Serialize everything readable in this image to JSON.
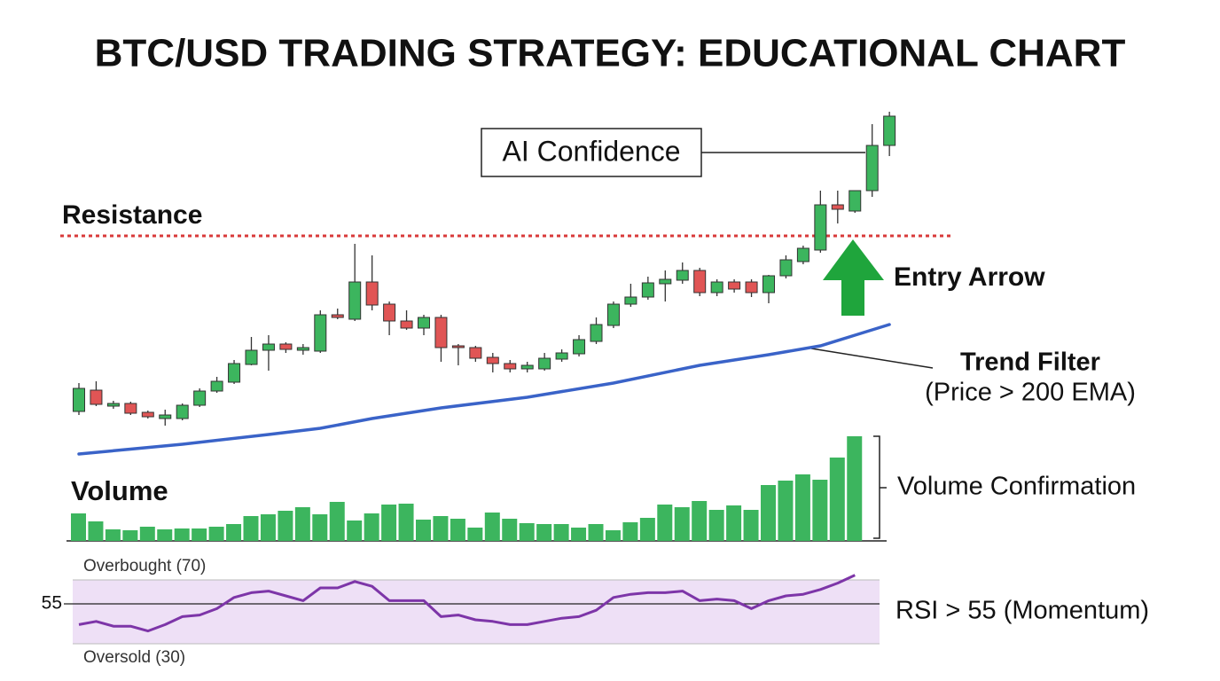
{
  "chart_data": [
    {
      "type": "candlestick",
      "title": "BTC/USD TRADING STRATEGY: EDUCATIONAL CHART",
      "open": [
        56,
        80,
        62,
        65,
        55,
        48,
        48,
        63,
        79,
        89,
        109,
        125,
        132,
        125,
        124,
        165,
        160,
        202,
        177,
        158,
        150,
        162,
        130,
        128,
        117,
        110,
        104,
        104,
        115,
        121,
        135,
        153,
        177,
        185,
        200,
        204,
        215,
        190,
        202,
        202,
        190,
        209,
        225,
        238,
        289,
        282,
        305,
        356
      ],
      "high": [
        88,
        90,
        68,
        67,
        57,
        58,
        65,
        82,
        95,
        114,
        140,
        142,
        134,
        132,
        170,
        172,
        245,
        232,
        180,
        170,
        165,
        165,
        132,
        130,
        122,
        114,
        112,
        122,
        126,
        142,
        162,
        180,
        200,
        208,
        215,
        224,
        218,
        205,
        205,
        205,
        210,
        232,
        243,
        305,
        305,
        305,
        380,
        394
      ],
      "low": [
        52,
        62,
        59,
        52,
        48,
        40,
        46,
        61,
        77,
        87,
        108,
        102,
        122,
        120,
        122,
        160,
        158,
        170,
        142,
        148,
        142,
        112,
        108,
        112,
        100,
        100,
        100,
        102,
        112,
        118,
        132,
        150,
        174,
        182,
        180,
        200,
        186,
        186,
        190,
        185,
        178,
        206,
        222,
        235,
        268,
        280,
        298,
        344
      ],
      "close": [
        82,
        64,
        65,
        54,
        50,
        52,
        63,
        79,
        90,
        110,
        125,
        132,
        126,
        128,
        165,
        162,
        202,
        176,
        158,
        150,
        162,
        128,
        128,
        116,
        110,
        104,
        108,
        116,
        122,
        137,
        154,
        177,
        185,
        201,
        205,
        215,
        190,
        202,
        194,
        190,
        209,
        227,
        240,
        289,
        284,
        305,
        356,
        389
      ],
      "ylim": [
        0,
        420
      ],
      "up_color": "#3cb55e",
      "down_color": "#e05555",
      "resistance": {
        "label": "Resistance",
        "value": 254,
        "color": "#d93a3a"
      },
      "ema": {
        "x": [
          0,
          6,
          11,
          14,
          17,
          21,
          26,
          31,
          36,
          40,
          43,
          45,
          47
        ],
        "values": [
          8,
          19,
          30,
          37,
          48,
          60,
          72,
          88,
          108,
          120,
          130,
          142,
          154
        ],
        "color": "#3a63c8"
      },
      "annotations": [
        "AI Confidence",
        "Entry Arrow",
        "Trend Filter",
        "(Price > 200 EMA)"
      ]
    },
    {
      "type": "bar",
      "title": "Volume",
      "values": [
        31,
        22,
        13,
        12,
        16,
        13,
        14,
        14,
        16,
        19,
        28,
        30,
        34,
        38,
        30,
        44,
        23,
        31,
        41,
        42,
        24,
        28,
        25,
        15,
        32,
        25,
        20,
        19,
        19,
        15,
        19,
        12,
        21,
        26,
        41,
        38,
        45,
        35,
        40,
        35,
        63,
        68,
        75,
        69,
        94,
        118
      ],
      "ylim": [
        0,
        120
      ],
      "color": "#3cb55e",
      "annotation": "Volume Confirmation"
    },
    {
      "type": "line",
      "values": [
        42,
        44,
        41,
        41,
        38,
        42,
        47,
        48,
        52,
        59,
        62,
        63,
        60,
        57,
        65,
        65,
        69,
        66,
        57,
        57,
        57,
        47,
        48,
        45,
        44,
        42,
        42,
        44,
        46,
        47,
        51,
        59,
        61,
        62,
        62,
        63,
        57,
        58,
        57,
        52,
        57,
        60,
        61,
        64,
        68,
        73
      ],
      "ylim": [
        25,
        75
      ],
      "yticks": [
        55
      ],
      "color": "#7d35a8",
      "band": {
        "overbought": 70,
        "oversold": 30,
        "overbought_label": "Overbought (70)",
        "oversold_label": "Oversold (30)",
        "color": "#eee0f6"
      },
      "annotation": "RSI > 55 (Momentum)"
    }
  ]
}
